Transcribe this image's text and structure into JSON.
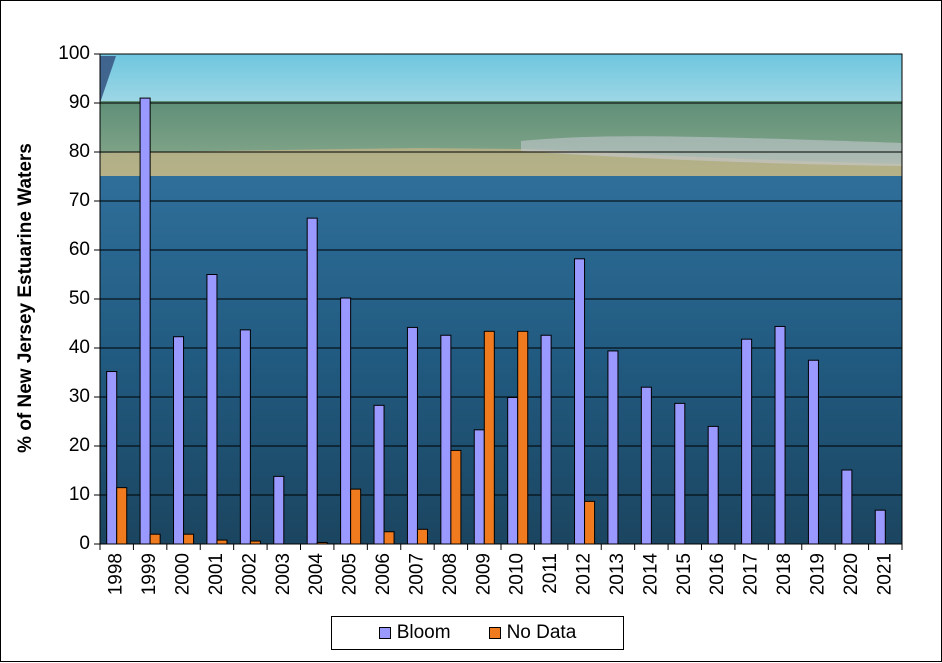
{
  "chart_data": {
    "type": "bar",
    "ylabel": "% of New Jersey Estuarine Waters",
    "xlabel": "",
    "ylim": [
      0,
      100
    ],
    "yticks": [
      0,
      10,
      20,
      30,
      40,
      50,
      60,
      70,
      80,
      90,
      100
    ],
    "grid": true,
    "legend_position": "bottom",
    "background": "aerial photograph of estuarine bay and shoreline",
    "categories": [
      "1998",
      "1999",
      "2000",
      "2001",
      "2002",
      "2003",
      "2004",
      "2005",
      "2006",
      "2007",
      "2008",
      "2009",
      "2010",
      "2011",
      "2012",
      "2013",
      "2014",
      "2015",
      "2016",
      "2017",
      "2018",
      "2019",
      "2020",
      "2021"
    ],
    "series": [
      {
        "name": "Bloom",
        "color": "#9999ff",
        "values": [
          35.2,
          91,
          42.3,
          55,
          43.7,
          13.8,
          66.5,
          50.2,
          28.3,
          44.2,
          42.6,
          23.3,
          29.9,
          42.6,
          58.2,
          39.4,
          32,
          28.7,
          24,
          41.8,
          44.4,
          37.5,
          15.1,
          6.9
        ]
      },
      {
        "name": "No Data",
        "color": "#f07a1e",
        "values": [
          11.5,
          2,
          2,
          0.8,
          0.6,
          0,
          0.3,
          11.2,
          2.5,
          3,
          19.1,
          43.4,
          43.4,
          0,
          8.7,
          0,
          0,
          0,
          0,
          0,
          0,
          0,
          0,
          0
        ]
      }
    ]
  }
}
